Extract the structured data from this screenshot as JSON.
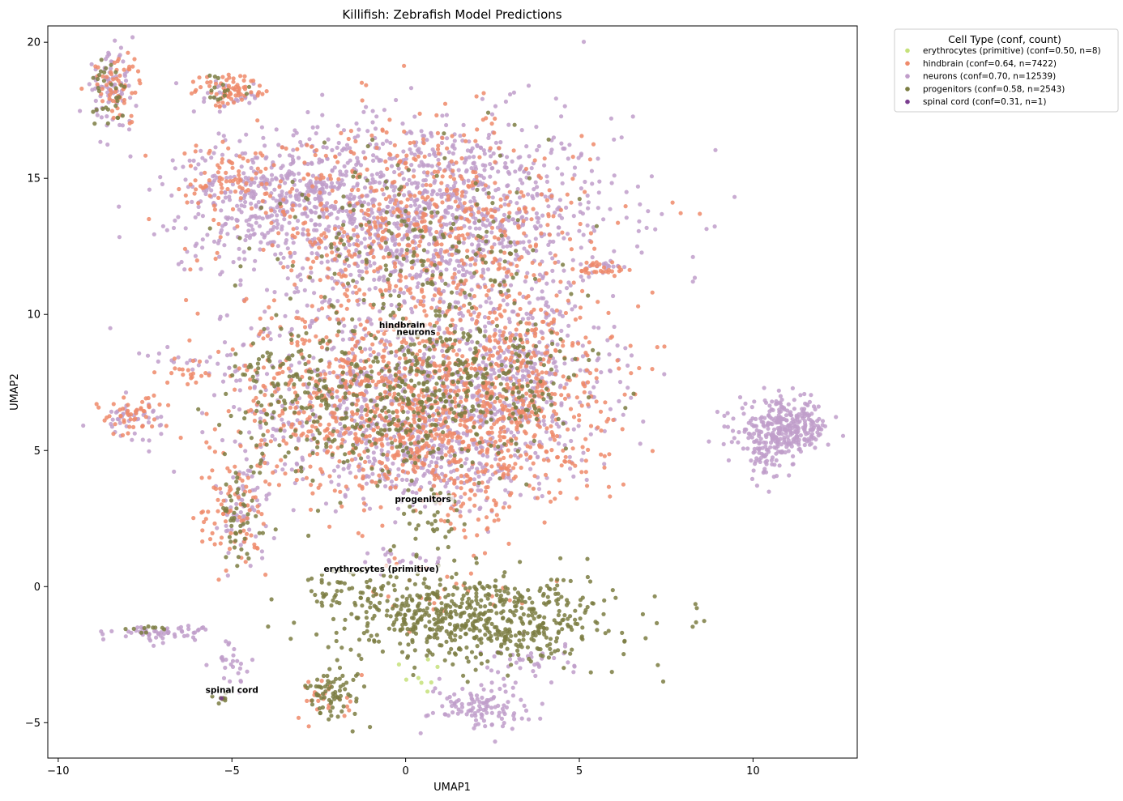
{
  "chart_data": {
    "type": "scatter",
    "title": "Killifish: Zebrafish Model Predictions",
    "xlabel": "UMAP1",
    "ylabel": "UMAP2",
    "xlim": [
      -10.3,
      13.0
    ],
    "ylim": [
      -6.3,
      20.6
    ],
    "xticks": [
      -10,
      -5,
      0,
      5,
      10
    ],
    "yticks": [
      -5,
      0,
      5,
      10,
      15,
      20
    ],
    "grid": false,
    "legend": {
      "title": "Cell Type (conf, count)",
      "placement": "outside-top-right"
    },
    "series": [
      {
        "name": "erythrocytes (primitive)",
        "legend_label": "erythrocytes (primitive) (conf=0.50, n=8)",
        "confidence": 0.5,
        "count": 8,
        "color": "#c5e17a",
        "regions": [
          {
            "cx": 0.6,
            "cy": -3.2,
            "sx": 0.3,
            "sy": 0.3,
            "n": 8
          }
        ]
      },
      {
        "name": "hindbrain",
        "legend_label": "hindbrain (conf=0.64, n=7422)",
        "confidence": 0.64,
        "count": 7422,
        "color": "#ef8a6a",
        "regions": [
          {
            "cx": 0.3,
            "cy": 13.0,
            "sx": 2.5,
            "sy": 2.0,
            "n": 650
          },
          {
            "cx": -1.0,
            "cy": 7.0,
            "sx": 2.0,
            "sy": 1.5,
            "n": 500
          },
          {
            "cx": 3.0,
            "cy": 7.5,
            "sx": 1.5,
            "sy": 1.8,
            "n": 450
          },
          {
            "cx": 0.5,
            "cy": 5.0,
            "sx": 2.5,
            "sy": 1.0,
            "n": 280
          },
          {
            "cx": -5.0,
            "cy": 15.0,
            "sx": 1.0,
            "sy": 0.7,
            "n": 80
          },
          {
            "cx": -8.3,
            "cy": 18.4,
            "sx": 0.35,
            "sy": 0.6,
            "n": 60
          },
          {
            "cx": -5.0,
            "cy": 18.2,
            "sx": 0.55,
            "sy": 0.3,
            "n": 70
          },
          {
            "cx": -8.0,
            "cy": 6.3,
            "sx": 0.45,
            "sy": 0.35,
            "n": 45
          },
          {
            "cx": -5.0,
            "cy": 2.5,
            "sx": 0.5,
            "sy": 1.1,
            "n": 80
          },
          {
            "cx": 2.0,
            "cy": 3.0,
            "sx": 0.5,
            "sy": 0.8,
            "n": 40
          },
          {
            "cx": 5.8,
            "cy": 11.7,
            "sx": 0.4,
            "sy": 0.15,
            "n": 25
          },
          {
            "cx": -6.2,
            "cy": 7.8,
            "sx": 0.5,
            "sy": 0.3,
            "n": 18
          },
          {
            "cx": -2.2,
            "cy": -4.1,
            "sx": 0.4,
            "sy": 0.4,
            "n": 25
          },
          {
            "cx": 1.2,
            "cy": 0.0,
            "sx": 1.5,
            "sy": 0.6,
            "n": 30
          }
        ]
      },
      {
        "name": "neurons",
        "legend_label": "neurons (conf=0.70, n=12539)",
        "confidence": 0.7,
        "count": 12539,
        "color": "#c09dca",
        "regions": [
          {
            "cx": 0.5,
            "cy": 13.5,
            "sx": 2.8,
            "sy": 1.9,
            "n": 1300
          },
          {
            "cx": -3.5,
            "cy": 14.5,
            "sx": 1.6,
            "sy": 0.9,
            "n": 320
          },
          {
            "cx": -0.5,
            "cy": 7.0,
            "sx": 2.3,
            "sy": 1.6,
            "n": 600
          },
          {
            "cx": 3.2,
            "cy": 7.5,
            "sx": 1.4,
            "sy": 1.7,
            "n": 380
          },
          {
            "cx": 0.8,
            "cy": 4.5,
            "sx": 1.8,
            "sy": 0.8,
            "n": 220
          },
          {
            "cx": -8.5,
            "cy": 18.2,
            "sx": 0.35,
            "sy": 0.7,
            "n": 80
          },
          {
            "cx": -5.1,
            "cy": 18.0,
            "sx": 0.5,
            "sy": 0.3,
            "n": 30
          },
          {
            "cx": 10.9,
            "cy": 5.8,
            "sx": 0.65,
            "sy": 0.5,
            "n": 320
          },
          {
            "cx": 10.3,
            "cy": 4.6,
            "sx": 0.2,
            "sy": 0.4,
            "n": 40
          },
          {
            "cx": -7.9,
            "cy": 6.2,
            "sx": 0.5,
            "sy": 0.35,
            "n": 45
          },
          {
            "cx": -7.0,
            "cy": -1.7,
            "sx": 0.7,
            "sy": 0.15,
            "n": 60
          },
          {
            "cx": 2.1,
            "cy": -4.4,
            "sx": 0.7,
            "sy": 0.4,
            "n": 110
          },
          {
            "cx": -4.6,
            "cy": 2.8,
            "sx": 0.4,
            "sy": 0.9,
            "n": 60
          },
          {
            "cx": -5.0,
            "cy": -3.0,
            "sx": 0.3,
            "sy": 0.5,
            "n": 25
          },
          {
            "cx": 5.8,
            "cy": 11.8,
            "sx": 0.3,
            "sy": 0.15,
            "n": 12
          },
          {
            "cx": -6.0,
            "cy": 8.3,
            "sx": 0.8,
            "sy": 0.3,
            "n": 20
          },
          {
            "cx": 0.0,
            "cy": 1.0,
            "sx": 0.5,
            "sy": 0.2,
            "n": 20
          },
          {
            "cx": 3.5,
            "cy": -2.8,
            "sx": 0.7,
            "sy": 0.4,
            "n": 40
          }
        ]
      },
      {
        "name": "progenitors",
        "legend_label": "progenitors (conf=0.58, n=2543)",
        "confidence": 0.58,
        "count": 2543,
        "color": "#7b7d42",
        "regions": [
          {
            "cx": 2.0,
            "cy": -1.2,
            "sx": 2.0,
            "sy": 0.8,
            "n": 650
          },
          {
            "cx": -1.3,
            "cy": 6.5,
            "sx": 1.7,
            "sy": 1.5,
            "n": 280
          },
          {
            "cx": 1.2,
            "cy": 7.8,
            "sx": 1.2,
            "sy": 1.3,
            "n": 220
          },
          {
            "cx": 0.5,
            "cy": 12.5,
            "sx": 2.3,
            "sy": 1.8,
            "n": 200
          },
          {
            "cx": -2.0,
            "cy": -3.9,
            "sx": 0.4,
            "sy": 0.5,
            "n": 70
          },
          {
            "cx": -4.8,
            "cy": 2.3,
            "sx": 0.4,
            "sy": 0.9,
            "n": 45
          },
          {
            "cx": -8.6,
            "cy": 18.2,
            "sx": 0.3,
            "sy": 0.6,
            "n": 30
          },
          {
            "cx": -3.5,
            "cy": 7.8,
            "sx": 0.8,
            "sy": 0.8,
            "n": 60
          },
          {
            "cx": -1.6,
            "cy": 0.0,
            "sx": 0.7,
            "sy": 0.3,
            "n": 35
          },
          {
            "cx": 1.0,
            "cy": 2.5,
            "sx": 0.6,
            "sy": 0.6,
            "n": 30
          },
          {
            "cx": 3.5,
            "cy": 7.0,
            "sx": 1.0,
            "sy": 1.2,
            "n": 70
          },
          {
            "cx": -5.0,
            "cy": 18.2,
            "sx": 0.5,
            "sy": 0.3,
            "n": 15
          },
          {
            "cx": -5.3,
            "cy": -4.1,
            "sx": 0.12,
            "sy": 0.1,
            "n": 8
          },
          {
            "cx": -7.5,
            "cy": -1.5,
            "sx": 0.3,
            "sy": 0.1,
            "n": 10
          }
        ]
      },
      {
        "name": "spinal cord",
        "legend_label": "spinal cord (conf=0.31, n=1)",
        "confidence": 0.31,
        "count": 1,
        "color": "#7a3d8f",
        "regions": [
          {
            "cx": -5.3,
            "cy": -4.1,
            "sx": 0.01,
            "sy": 0.01,
            "n": 1
          }
        ]
      }
    ],
    "annotations": [
      {
        "text": "hindbrain",
        "x": -0.1,
        "y": 9.5
      },
      {
        "text": "neurons",
        "x": 0.3,
        "y": 9.25
      },
      {
        "text": "progenitors",
        "x": 0.5,
        "y": 3.1
      },
      {
        "text": "erythrocytes (primitive)",
        "x": -0.7,
        "y": 0.55
      },
      {
        "text": "spinal cord",
        "x": -5.0,
        "y": -3.9
      }
    ]
  }
}
